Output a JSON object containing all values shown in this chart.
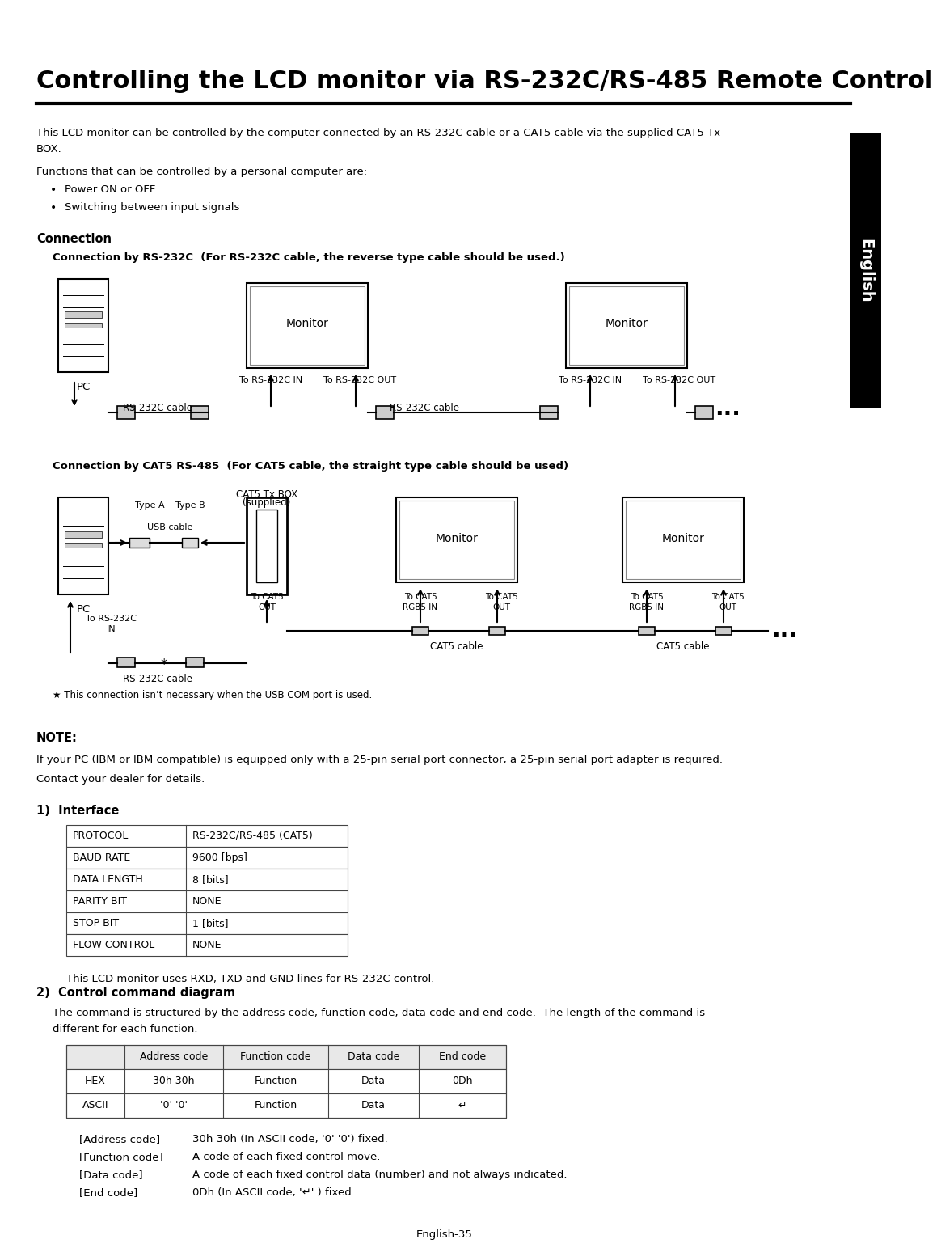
{
  "title": "Controlling the LCD monitor via RS-232C/RS-485 Remote Control",
  "bg_color": "#ffffff",
  "text_color": "#000000",
  "intro_line1": "This LCD monitor can be controlled by the computer connected by an RS-232C cable or a CAT5 cable via the supplied CAT5 Tx",
  "intro_line2": "BOX.",
  "functions_intro": "Functions that can be controlled by a personal computer are:",
  "bullet_points": [
    "Power ON or OFF",
    "Switching between input signals"
  ],
  "section_connection": "Connection",
  "subsection_rs232": "Connection by RS-232C  (For RS-232C cable, the reverse type cable should be used.)",
  "subsection_cat5": "Connection by CAT5 RS-485  (For CAT5 cable, the straight type cable should be used)",
  "note_header": "NOTE:",
  "note_line1": "If your PC (IBM or IBM compatible) is equipped only with a 25-pin serial port connector, a 25-pin serial port adapter is required.",
  "note_line2": "Contact your dealer for details.",
  "section1": "1)  Interface",
  "interface_table": [
    [
      "PROTOCOL",
      "RS-232C/RS-485 (CAT5)"
    ],
    [
      "BAUD RATE",
      "9600 [bps]"
    ],
    [
      "DATA LENGTH",
      "8 [bits]"
    ],
    [
      "PARITY BIT",
      "NONE"
    ],
    [
      "STOP BIT",
      "1 [bits]"
    ],
    [
      "FLOW CONTROL",
      "NONE"
    ]
  ],
  "interface_note": "This LCD monitor uses RXD, TXD and GND lines for RS-232C control.",
  "section2": "2)  Control command diagram",
  "command_intro1": "The command is structured by the address code, function code, data code and end code.  The length of the command is",
  "command_intro2": "different for each function.",
  "command_table_headers": [
    "",
    "Address code",
    "Function code",
    "Data code",
    "End code"
  ],
  "command_table_rows": [
    [
      "HEX",
      "30h 30h",
      "Function",
      "Data",
      "0Dh"
    ],
    [
      "ASCII",
      "'0' '0'",
      "Function",
      "Data",
      "↵"
    ]
  ],
  "code_notes": [
    [
      "[Address code]",
      "30h 30h (In ASCII code, '0' '0') fixed."
    ],
    [
      "[Function code]",
      "A code of each fixed control move."
    ],
    [
      "[Data code]",
      "A code of each fixed control data (number) and not always indicated."
    ],
    [
      "[End code]",
      "0Dh (In ASCII code, '↵' ) fixed."
    ]
  ],
  "footer": "English-35",
  "sidebar_text": "English",
  "sidebar_color": "#000000",
  "sidebar_text_color": "#ffffff"
}
